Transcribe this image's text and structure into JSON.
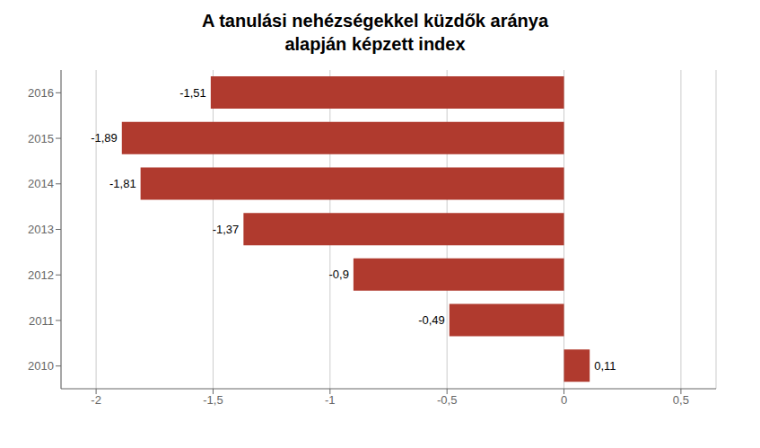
{
  "chart_data": {
    "type": "bar",
    "title": "A tanulási nehézségekkel küzdők aránya\nalapján képzett index",
    "orientation": "horizontal",
    "categories": [
      "2010",
      "2011",
      "2012",
      "2013",
      "2014",
      "2015",
      "2016"
    ],
    "values": [
      0.11,
      -0.49,
      -0.9,
      -1.37,
      -1.81,
      -1.89,
      -1.51
    ],
    "value_labels": [
      "0,11",
      "-0,49",
      "-0,9",
      "-1,37",
      "-1,81",
      "-1,89",
      "-1,51"
    ],
    "data_labels": true,
    "color": "#b03a2e",
    "xlim": [
      -2.15,
      0.65
    ],
    "xticks": [
      -2,
      {
        "value": -1.5,
        "label": "-1,5"
      },
      -1,
      {
        "value": -0.5,
        "label": "-0,5"
      },
      0,
      {
        "value": 0.5,
        "label": "0,5"
      }
    ],
    "grid": true
  }
}
